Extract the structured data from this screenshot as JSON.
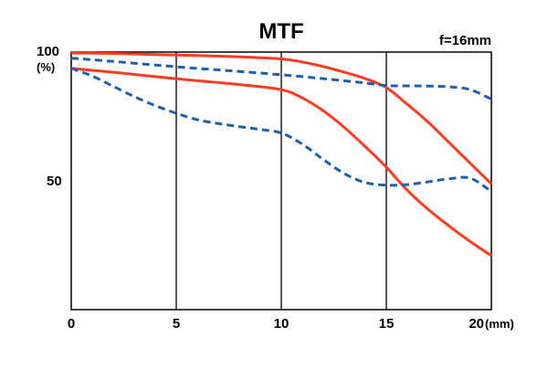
{
  "chart_data": {
    "type": "line",
    "title": "MTF",
    "subtitle": "f=16mm",
    "xlabel": "(mm)",
    "ylabel": "(%)",
    "xlim": [
      0,
      20
    ],
    "ylim": [
      0,
      100
    ],
    "x_ticks": [
      "0",
      "5",
      "10",
      "15",
      "20"
    ],
    "y_ticks": [
      "50",
      "100"
    ],
    "grid": "vertical",
    "series": [
      {
        "color": "#ff3b1f",
        "style": "solid",
        "x": [
          0,
          2,
          4,
          6,
          8,
          10,
          11,
          12,
          13,
          14,
          15,
          16,
          17,
          18,
          19,
          20
        ],
        "y": [
          100,
          99.8,
          99.4,
          99,
          98.5,
          97.7,
          96.5,
          94.7,
          92.5,
          90,
          86.5,
          80,
          73,
          65,
          57,
          49
        ]
      },
      {
        "color": "#ff3b1f",
        "style": "solid",
        "x": [
          0,
          2,
          4,
          6,
          8,
          10,
          11,
          12,
          13,
          14,
          15,
          16,
          17,
          18,
          19,
          20
        ],
        "y": [
          94,
          92.5,
          90.8,
          89.2,
          87.7,
          85.7,
          82.5,
          77.5,
          71,
          63.5,
          55.5,
          46.5,
          39,
          32.5,
          26.5,
          21
        ]
      },
      {
        "color": "#1f5fb0",
        "style": "dashed",
        "x": [
          0,
          2,
          4,
          6,
          8,
          10,
          12,
          14,
          15,
          16,
          17,
          18,
          19,
          20
        ],
        "y": [
          98,
          96.7,
          95.3,
          94,
          92.8,
          91.5,
          90,
          88.3,
          87.3,
          87.2,
          87.1,
          86.8,
          85.7,
          82
        ]
      },
      {
        "color": "#1f5fb0",
        "style": "dashed",
        "x": [
          0,
          1,
          2,
          3,
          4,
          5,
          6,
          7,
          8,
          9,
          10,
          11,
          12,
          13,
          14,
          15,
          16,
          17,
          18,
          19,
          20
        ],
        "y": [
          94,
          91,
          87,
          83,
          79.5,
          76.5,
          74,
          72.5,
          71.3,
          70.2,
          68.8,
          64.5,
          58.5,
          53,
          49.5,
          48.5,
          48.7,
          49.8,
          51,
          51.2,
          46
        ]
      }
    ]
  }
}
